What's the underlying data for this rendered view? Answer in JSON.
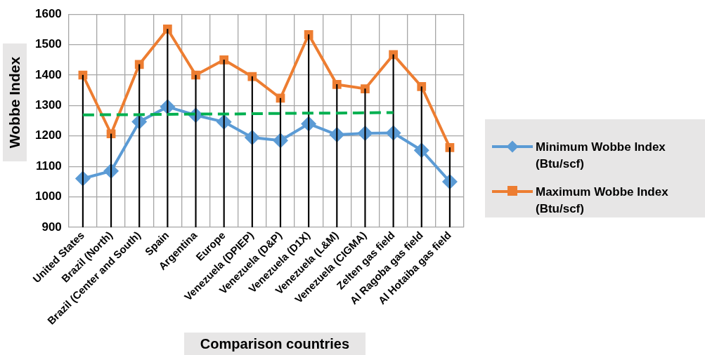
{
  "chart_data": {
    "type": "line",
    "xlabel": "Comparison countries",
    "ylabel": "Wobbe Index",
    "categories": [
      "United States",
      "Brazil (North)",
      "Brazil (Center and South)",
      "Spain",
      "Argentina",
      "Europe",
      "Venezuela (DPIEP)",
      "Venezuela (D&P)",
      "Venezuela (D1X)",
      "Venezuela (L&M)",
      "Venezuela (CIGMA)",
      "Zelten gas field",
      "Al Ragoba gas field",
      "Al Hotaiba gas field"
    ],
    "series": [
      {
        "name": "Minimum Wobbe Index (Btu/scf)",
        "color": "#5b9bd5",
        "marker": "diamond",
        "values": [
          1060,
          1085,
          1247,
          1296,
          1268,
          1246,
          1195,
          1185,
          1240,
          1204,
          1209,
          1210,
          1153,
          1050
        ]
      },
      {
        "name": "Maximum Wobbe Index (Btu/scf)",
        "color": "#ed7d31",
        "marker": "square",
        "values": [
          1400,
          1207,
          1435,
          1551,
          1400,
          1450,
          1395,
          1324,
          1533,
          1369,
          1355,
          1467,
          1362,
          1162
        ]
      },
      {
        "type": "bar",
        "color": "#000000",
        "values": [
          1400,
          1207,
          1435,
          1551,
          1400,
          1450,
          1395,
          1324,
          1533,
          1369,
          1355,
          1467,
          1362,
          1162
        ]
      },
      {
        "color": "#00b050",
        "marker": "none",
        "line_style": "dashed",
        "values": [
          1269,
          1270,
          1270,
          1271,
          1272,
          1272,
          1273,
          1274,
          1275,
          1275,
          1276,
          1277,
          null,
          null
        ]
      }
    ],
    "ylim": [
      900,
      1600
    ],
    "yticks": [
      900,
      1000,
      1100,
      1200,
      1300,
      1400,
      1500,
      1600
    ],
    "grid": true,
    "legend": "right"
  }
}
